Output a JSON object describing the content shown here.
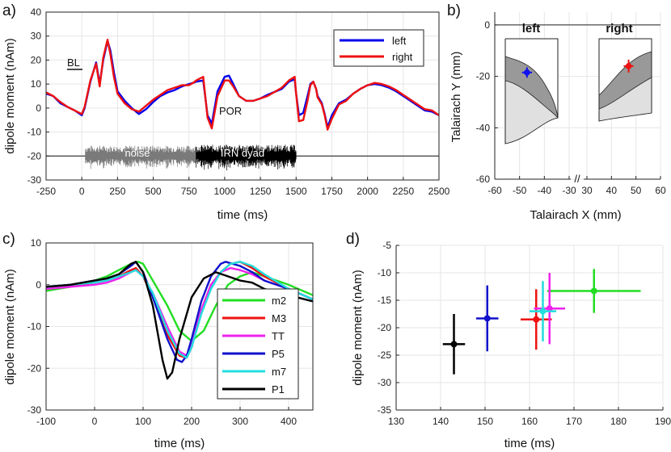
{
  "panels": {
    "a": "a)",
    "b": "b)",
    "c": "c)",
    "d": "d)"
  },
  "chart_data": [
    {
      "id": "a",
      "type": "line",
      "xlabel": "time (ms)",
      "ylabel": "dipole moment (nAm)",
      "xlim": [
        -250,
        2500
      ],
      "ylim": [
        -30,
        40
      ],
      "xticks": [
        -250,
        0,
        250,
        500,
        750,
        1000,
        1250,
        1500,
        1750,
        2000,
        2250,
        2500
      ],
      "yticks": [
        -30,
        -20,
        -10,
        0,
        10,
        20,
        30,
        40
      ],
      "annotations": {
        "baseline": "BL",
        "por": "POR",
        "noise": "noise",
        "irn": "IRN dyad"
      },
      "stimulus_band": {
        "noise_range": [
          25,
          800
        ],
        "irn_range": [
          800,
          1500
        ],
        "level": -20
      },
      "series": [
        {
          "name": "left",
          "color": "#0000ee",
          "x": [
            -250,
            -200,
            -150,
            -100,
            -50,
            0,
            20,
            60,
            100,
            125,
            150,
            180,
            200,
            225,
            250,
            300,
            350,
            400,
            450,
            500,
            550,
            600,
            650,
            700,
            750,
            780,
            800,
            850,
            880,
            910,
            950,
            1000,
            1030,
            1060,
            1100,
            1150,
            1200,
            1250,
            1300,
            1400,
            1450,
            1490,
            1500,
            1520,
            1550,
            1580,
            1600,
            1620,
            1640,
            1650,
            1680,
            1700,
            1720,
            1750,
            1800,
            1850,
            1900,
            1950,
            2000,
            2050,
            2100,
            2150,
            2200,
            2300,
            2400,
            2450,
            2500
          ],
          "y": [
            6,
            5,
            2,
            0.5,
            -1,
            -3,
            0,
            11,
            19,
            10,
            20,
            28,
            24,
            15,
            7,
            3,
            0,
            -2.5,
            -0.5,
            2.5,
            5,
            6.5,
            7.5,
            9,
            10,
            10.5,
            11,
            11.5,
            -3,
            -6.5,
            7,
            13,
            13.5,
            10,
            5,
            3,
            3,
            4,
            5.5,
            8,
            11,
            12,
            6,
            -3,
            -2,
            5,
            10,
            11,
            8,
            5,
            2,
            -2.5,
            -8,
            -3,
            2,
            3.5,
            6,
            8,
            9.5,
            10,
            9.5,
            8.5,
            7,
            3,
            -1,
            -1.5,
            -3
          ]
        },
        {
          "name": "right",
          "color": "#ee1111",
          "x": [
            -250,
            -200,
            -150,
            -100,
            -50,
            0,
            20,
            60,
            100,
            125,
            150,
            180,
            200,
            225,
            250,
            300,
            350,
            400,
            450,
            500,
            550,
            600,
            650,
            700,
            750,
            780,
            800,
            850,
            880,
            910,
            950,
            1000,
            1030,
            1060,
            1100,
            1150,
            1200,
            1250,
            1300,
            1400,
            1450,
            1490,
            1500,
            1520,
            1550,
            1580,
            1600,
            1620,
            1640,
            1650,
            1680,
            1700,
            1720,
            1750,
            1800,
            1850,
            1900,
            1950,
            2000,
            2050,
            2100,
            2150,
            2200,
            2300,
            2400,
            2450,
            2500
          ],
          "y": [
            6.5,
            5,
            2.5,
            0.5,
            -1,
            -2.5,
            0.5,
            11.5,
            18.5,
            9,
            21,
            28.5,
            22.5,
            13,
            6,
            2,
            -0.5,
            -1.5,
            1,
            3.5,
            5.5,
            7.5,
            8.5,
            9.5,
            9.5,
            10.5,
            11.5,
            13,
            -4,
            -8.5,
            5,
            11.5,
            11.5,
            9,
            5,
            3,
            3,
            4,
            5,
            8.5,
            11.5,
            13,
            6,
            -5.5,
            -5,
            3,
            9.5,
            11,
            8,
            4.5,
            1.5,
            -3,
            -9,
            -4.5,
            1.5,
            3,
            6,
            8,
            9.5,
            10.5,
            10,
            9,
            7.5,
            3.5,
            -0.5,
            -1,
            -3
          ]
        }
      ]
    },
    {
      "id": "b",
      "type": "scatter",
      "xlabel": "Talairach X (mm)",
      "ylabel": "Talairach Y (mm)",
      "xticks": [
        -60,
        -50,
        -40,
        -30,
        30,
        40,
        50,
        60
      ],
      "yticks": [
        0,
        -20,
        -40,
        -60
      ],
      "ylim": [
        -60,
        5
      ],
      "break_symbol": "//",
      "titles": {
        "left": "left",
        "right": "right"
      },
      "points": [
        {
          "hemisphere": "left",
          "x": -47,
          "y": -18.5,
          "xerr": 2,
          "yerr": 2,
          "color": "#1111ee"
        },
        {
          "hemisphere": "right",
          "x": 47,
          "y": -16,
          "xerr": 2,
          "yerr": 2.5,
          "color": "#ee1111"
        }
      ]
    },
    {
      "id": "c",
      "type": "line",
      "xlabel": "time (ms)",
      "ylabel": "dipole moment (nAm)",
      "xlim": [
        -100,
        450
      ],
      "ylim": [
        -30,
        10
      ],
      "xticks": [
        -100,
        0,
        100,
        200,
        300,
        400
      ],
      "yticks": [
        -30,
        -20,
        -10,
        0,
        10
      ],
      "series": [
        {
          "name": "m2",
          "color": "#22dd22",
          "x": [
            -100,
            -50,
            0,
            25,
            50,
            75,
            90,
            100,
            110,
            150,
            175,
            200,
            225,
            250,
            275,
            300,
            325,
            350,
            400,
            450
          ],
          "y": [
            -1.5,
            -0.5,
            1,
            2,
            3.5,
            5,
            5.5,
            5,
            3,
            -5,
            -11,
            -13.5,
            -11,
            -5,
            0,
            2,
            3,
            2,
            0,
            -2.5
          ]
        },
        {
          "name": "M3",
          "color": "#ee1111",
          "x": [
            -100,
            -50,
            0,
            25,
            50,
            75,
            85,
            100,
            120,
            150,
            175,
            190,
            200,
            220,
            240,
            260,
            280,
            300,
            325,
            350,
            400,
            450
          ],
          "y": [
            -1,
            -0.5,
            0.5,
            1,
            2,
            3.5,
            4,
            2,
            -3,
            -12,
            -17,
            -17.5,
            -15,
            -6,
            0,
            3,
            5,
            5.5,
            4,
            2,
            -1,
            -3.5
          ]
        },
        {
          "name": "TT",
          "color": "#ee22ee",
          "x": [
            -100,
            -50,
            0,
            25,
            50,
            75,
            85,
            100,
            120,
            150,
            175,
            190,
            200,
            220,
            240,
            260,
            280,
            300,
            325,
            350,
            400,
            450
          ],
          "y": [
            -1,
            -0.5,
            0,
            0.5,
            1.5,
            3,
            3.5,
            2,
            -2,
            -10,
            -16,
            -17,
            -14,
            -6,
            0,
            3,
            4,
            3.5,
            2.5,
            1,
            -1,
            -3.5
          ]
        },
        {
          "name": "P5",
          "color": "#1111cc",
          "x": [
            -100,
            -50,
            0,
            25,
            50,
            75,
            85,
            100,
            120,
            150,
            170,
            180,
            190,
            200,
            220,
            240,
            260,
            270,
            300,
            325,
            350,
            400,
            450
          ],
          "y": [
            -0.5,
            0,
            1,
            1.5,
            2.5,
            4.5,
            5.5,
            3,
            -3,
            -13,
            -18,
            -18.5,
            -17,
            -13,
            -4,
            2,
            5,
            5.5,
            4.5,
            3,
            1,
            -1,
            -3.5
          ]
        },
        {
          "name": "m7",
          "color": "#22dddd",
          "x": [
            -100,
            -50,
            0,
            25,
            50,
            75,
            85,
            100,
            120,
            150,
            175,
            190,
            200,
            220,
            240,
            260,
            280,
            300,
            325,
            350,
            400,
            450
          ],
          "y": [
            -0.5,
            0,
            0.5,
            1,
            2,
            3,
            3.5,
            2,
            -2,
            -11,
            -16.5,
            -17.5,
            -15,
            -7,
            -1,
            3,
            5,
            5.5,
            4.5,
            2.5,
            -1,
            -3.5
          ]
        },
        {
          "name": "P1",
          "color": "#000000",
          "x": [
            -100,
            -50,
            0,
            25,
            50,
            75,
            85,
            100,
            120,
            140,
            150,
            160,
            175,
            200,
            225,
            250,
            275,
            300,
            325,
            350,
            400,
            450
          ],
          "y": [
            -0.5,
            0,
            1,
            1.5,
            2.5,
            5,
            5.5,
            3,
            -5,
            -18,
            -22.5,
            -21,
            -13,
            -3,
            1.5,
            3,
            2,
            1,
            0.5,
            -1,
            -2.5,
            -4
          ]
        }
      ]
    },
    {
      "id": "d",
      "type": "scatter",
      "xlabel": "time (ms)",
      "ylabel": "dipole moment (nAm)",
      "xlim": [
        130,
        190
      ],
      "ylim": [
        -35,
        -5
      ],
      "xticks": [
        130,
        140,
        150,
        160,
        170,
        180,
        190
      ],
      "yticks": [
        -35,
        -30,
        -25,
        -20,
        -15,
        -10,
        -5
      ],
      "points": [
        {
          "name": "m2",
          "x": 174.5,
          "y": -13.3,
          "xerr": 10.5,
          "yerr": 4,
          "color": "#22dd22"
        },
        {
          "name": "M3",
          "x": 161.5,
          "y": -18.5,
          "xerr": 3.5,
          "yerr": 5.5,
          "color": "#ee1111"
        },
        {
          "name": "TT",
          "x": 164.5,
          "y": -16.5,
          "xerr": 3.5,
          "yerr": 6.5,
          "color": "#ee22ee"
        },
        {
          "name": "P5",
          "x": 150.5,
          "y": -18.3,
          "xerr": 2.5,
          "yerr": 6,
          "color": "#1111cc"
        },
        {
          "name": "m7",
          "x": 163,
          "y": -17,
          "xerr": 3,
          "yerr": 5.5,
          "color": "#22dddd"
        },
        {
          "name": "P1",
          "x": 143,
          "y": -23,
          "xerr": 2.5,
          "yerr": 5.5,
          "color": "#000000"
        }
      ]
    }
  ]
}
